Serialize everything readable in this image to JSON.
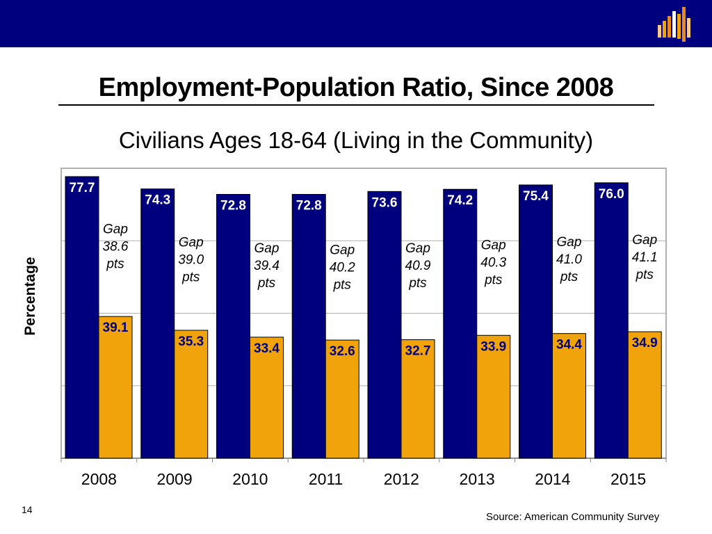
{
  "slide": {
    "title": "Employment-Population Ratio, Since 2008",
    "subtitle": "Civilians Ages 18-64 (Living in the Community)",
    "page_number": "14",
    "source": "Source: American Community Survey",
    "colors": {
      "banner": "#00007f",
      "series_1": "#00007f",
      "series_2": "#f0a30a"
    },
    "logo_icon": "bar-chart-map-logo-icon"
  },
  "chart_data": {
    "type": "bar",
    "ylabel": "Percentage",
    "xlabel": "",
    "ylim": [
      0,
      80
    ],
    "grid": true,
    "categories": [
      "2008",
      "2009",
      "2010",
      "2011",
      "2012",
      "2013",
      "2014",
      "2015"
    ],
    "series": [
      {
        "values": [
          77.7,
          74.3,
          72.8,
          72.8,
          73.6,
          74.2,
          75.4,
          76.0
        ],
        "labels": [
          "77.7",
          "74.3",
          "72.8",
          "72.8",
          "73.6",
          "74.2",
          "75.4",
          "76.0"
        ]
      },
      {
        "values": [
          39.1,
          35.3,
          33.4,
          32.6,
          32.7,
          33.9,
          34.4,
          34.9
        ],
        "labels": [
          "39.1",
          "35.3",
          "33.4",
          "32.6",
          "32.7",
          "33.9",
          "34.4",
          "34.9"
        ]
      }
    ],
    "annotations": [
      [
        "Gap",
        "38.6",
        "pts"
      ],
      [
        "Gap",
        "39.0",
        "pts"
      ],
      [
        "Gap",
        "39.4",
        "pts"
      ],
      [
        "Gap",
        "40.2",
        "pts"
      ],
      [
        "Gap",
        "40.9",
        "pts"
      ],
      [
        "Gap",
        "40.3",
        "pts"
      ],
      [
        "Gap",
        "41.0",
        "pts"
      ],
      [
        "Gap",
        "41.1",
        "pts"
      ]
    ]
  }
}
